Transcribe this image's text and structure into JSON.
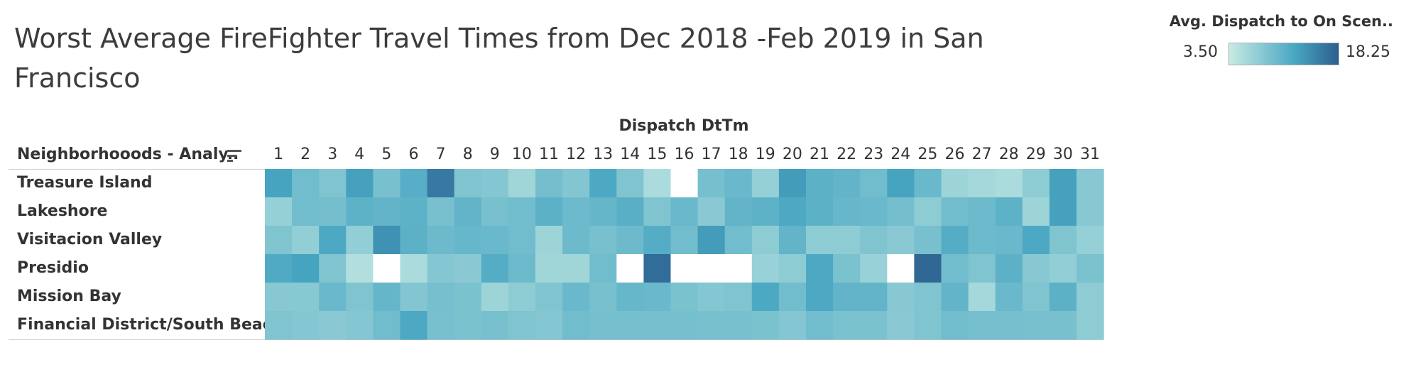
{
  "chart_data": {
    "type": "heatmap",
    "title": "Worst Average FireFighter Travel Times from Dec 2018 -Feb 2019 in San Francisco",
    "column_axis_label": "Dispatch DtTm",
    "row_axis_label": "Neighborhooods - Analy..",
    "legend": {
      "title": "Avg. Dispatch to On Scen..",
      "min_label": "3.50",
      "max_label": "18.25",
      "min": 3.5,
      "max": 18.25,
      "color_low": "#c8ebe3",
      "color_mid": "#48a6c2",
      "color_high": "#2c5e8f",
      "placement": "top-right"
    },
    "columns": [
      "1",
      "2",
      "3",
      "4",
      "5",
      "6",
      "7",
      "8",
      "9",
      "10",
      "11",
      "12",
      "13",
      "14",
      "15",
      "16",
      "17",
      "18",
      "19",
      "20",
      "21",
      "22",
      "23",
      "24",
      "25",
      "26",
      "27",
      "28",
      "29",
      "30",
      "31"
    ],
    "rows": [
      "Treasure Island",
      "Lakeshore",
      "Visitacion Valley",
      "Presidio",
      "Mission Bay",
      "Financial District/South Beach"
    ],
    "values": [
      [
        12.5,
        9.5,
        8.5,
        12.8,
        9.0,
        11.3,
        16.0,
        8.5,
        8.2,
        6.2,
        9.3,
        8.3,
        12.0,
        8.5,
        5.5,
        null,
        9.2,
        10.0,
        7.0,
        13.2,
        11.0,
        10.5,
        9.5,
        12.5,
        10.0,
        6.5,
        6.0,
        5.5,
        7.5,
        12.8,
        8.0
      ],
      [
        7.0,
        9.5,
        9.3,
        10.8,
        10.5,
        10.8,
        9.0,
        10.5,
        9.0,
        9.5,
        11.0,
        9.8,
        10.3,
        11.2,
        8.5,
        10.0,
        7.8,
        10.5,
        10.8,
        12.0,
        11.0,
        10.2,
        10.0,
        9.3,
        7.5,
        9.5,
        9.8,
        10.8,
        6.5,
        12.8,
        8.0
      ],
      [
        8.5,
        7.2,
        12.0,
        7.2,
        14.0,
        11.0,
        9.8,
        10.2,
        10.0,
        9.5,
        6.5,
        9.8,
        9.0,
        9.8,
        11.5,
        9.5,
        13.2,
        9.5,
        7.5,
        10.5,
        7.5,
        7.5,
        8.5,
        7.8,
        9.0,
        11.5,
        9.8,
        10.0,
        12.0,
        8.5,
        7.0
      ],
      [
        11.8,
        12.5,
        8.5,
        5.0,
        null,
        5.5,
        8.2,
        7.8,
        11.5,
        9.8,
        6.2,
        6.2,
        9.5,
        null,
        17.0,
        null,
        null,
        null,
        6.8,
        7.5,
        12.0,
        8.8,
        6.8,
        null,
        17.5,
        9.5,
        8.5,
        11.0,
        8.0,
        7.2,
        8.8
      ],
      [
        8.0,
        8.0,
        10.0,
        8.5,
        10.3,
        8.3,
        9.2,
        8.8,
        6.5,
        7.5,
        8.5,
        10.0,
        9.0,
        10.2,
        10.0,
        8.8,
        8.2,
        8.5,
        12.0,
        9.5,
        12.0,
        10.5,
        10.5,
        8.0,
        8.5,
        10.5,
        6.0,
        10.0,
        8.5,
        11.0,
        7.5
      ],
      [
        8.5,
        8.2,
        7.8,
        8.2,
        9.5,
        12.0,
        9.0,
        8.8,
        9.0,
        8.5,
        8.2,
        9.5,
        9.2,
        9.2,
        9.2,
        9.2,
        9.0,
        9.0,
        8.8,
        8.2,
        9.5,
        8.8,
        8.8,
        7.8,
        8.5,
        9.5,
        9.2,
        9.2,
        9.0,
        9.0,
        7.5
      ]
    ]
  }
}
